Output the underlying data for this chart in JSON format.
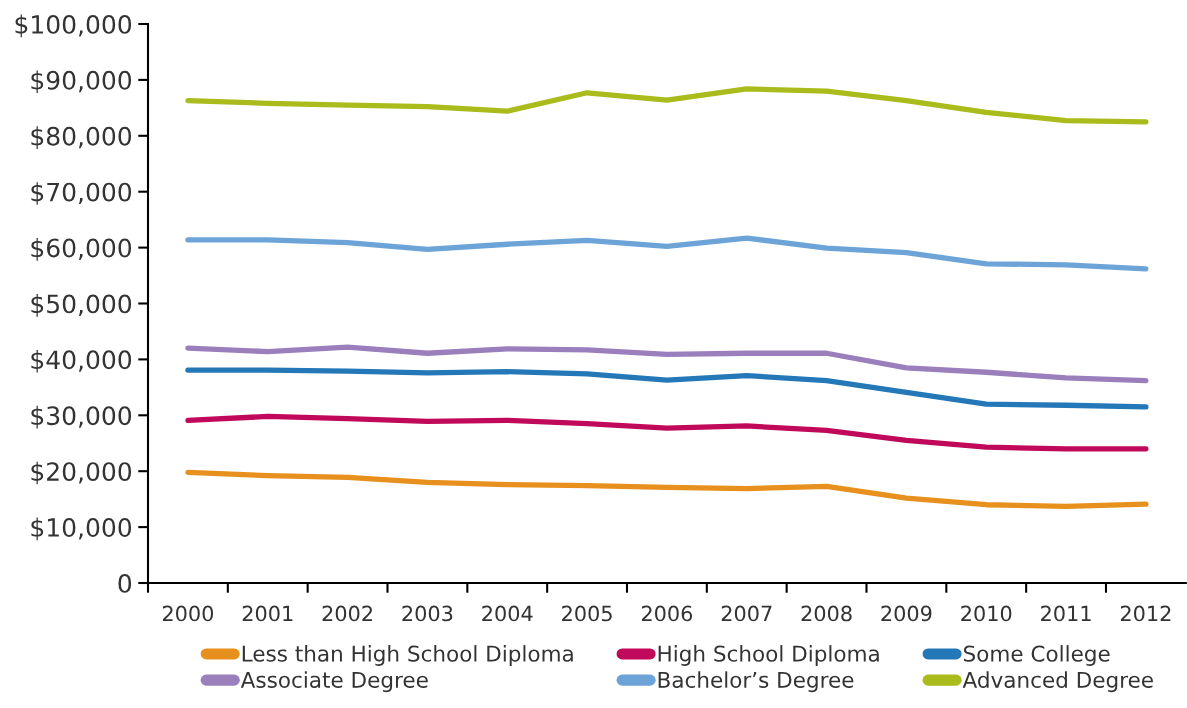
{
  "chart_data": {
    "type": "line",
    "categories": [
      "2000",
      "2001",
      "2002",
      "2003",
      "2004",
      "2005",
      "2006",
      "2007",
      "2008",
      "2009",
      "2010",
      "2011",
      "2012"
    ],
    "series": [
      {
        "name": "Less than High School Diploma",
        "color": "#e8901d",
        "values": [
          19800,
          19200,
          18900,
          18000,
          17600,
          17400,
          17100,
          16900,
          17300,
          15200,
          14000,
          13700,
          14100
        ]
      },
      {
        "name": "High School Diploma",
        "color": "#c0095a",
        "values": [
          29100,
          29800,
          29400,
          28900,
          29100,
          28500,
          27700,
          28100,
          27300,
          25500,
          24300,
          24000,
          24000
        ]
      },
      {
        "name": "Some College",
        "color": "#2478b8",
        "values": [
          38100,
          38100,
          37900,
          37600,
          37800,
          37400,
          36300,
          37100,
          36200,
          34100,
          32000,
          31800,
          31500
        ]
      },
      {
        "name": "Associate Degree",
        "color": "#9b7fbd",
        "values": [
          42000,
          41400,
          42200,
          41100,
          41900,
          41700,
          40900,
          41100,
          41100,
          38500,
          37700,
          36700,
          36200
        ]
      },
      {
        "name": "Bachelor’s Degree",
        "color": "#6ca4d8",
        "values": [
          61400,
          61400,
          60900,
          59700,
          60600,
          61300,
          60200,
          61700,
          59900,
          59100,
          57100,
          56900,
          56200
        ]
      },
      {
        "name": "Advanced Degree",
        "color": "#a9bc1c",
        "values": [
          86300,
          85800,
          85500,
          85200,
          84400,
          87700,
          86400,
          88400,
          88000,
          86300,
          84200,
          82700,
          82500
        ]
      }
    ],
    "ylim": [
      0,
      100000
    ],
    "yticks": [
      0,
      {
        "value": 10000,
        "label": "$10,000"
      },
      {
        "value": 20000,
        "label": "$20,000"
      },
      {
        "value": 30000,
        "label": "$30,000"
      },
      {
        "value": 40000,
        "label": "$40,000"
      },
      {
        "value": 50000,
        "label": "$50,000"
      },
      {
        "value": 60000,
        "label": "$60,000"
      },
      {
        "value": 70000,
        "label": "$70,000"
      },
      {
        "value": 80000,
        "label": "$80,000"
      },
      {
        "value": 90000,
        "label": "$90,000"
      },
      {
        "value": 100000,
        "label": "$100,000"
      }
    ],
    "grid": false,
    "legend": "bottom",
    "marker": "none",
    "line_style": "solid"
  }
}
